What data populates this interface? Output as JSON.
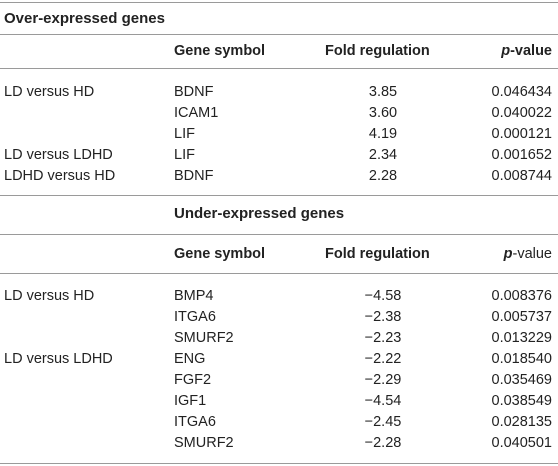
{
  "sections": [
    {
      "title": "Over-expressed genes",
      "headers": {
        "gene": "Gene symbol",
        "fold": "Fold regulation",
        "p_italic": "p",
        "p_rest": "-value"
      },
      "rows": [
        {
          "label": "LD versus HD",
          "gene": "BDNF",
          "fold": "3.85",
          "p": "0.046434"
        },
        {
          "label": "",
          "gene": "ICAM1",
          "fold": "3.60",
          "p": "0.040022"
        },
        {
          "label": "",
          "gene": "LIF",
          "fold": "4.19",
          "p": "0.000121"
        },
        {
          "label": "LD versus LDHD",
          "gene": "LIF",
          "fold": "2.34",
          "p": "0.001652"
        },
        {
          "label": "LDHD versus HD",
          "gene": "BDNF",
          "fold": "2.28",
          "p": "0.008744"
        }
      ]
    },
    {
      "title": "Under-expressed genes",
      "headers": {
        "gene": "Gene symbol",
        "fold": "Fold regulation",
        "p_italic": "p",
        "p_rest": "-value"
      },
      "rows": [
        {
          "label": "LD versus HD",
          "gene": "BMP4",
          "fold": "−4.58",
          "p": "0.008376"
        },
        {
          "label": "",
          "gene": "ITGA6",
          "fold": "−2.38",
          "p": "0.005737"
        },
        {
          "label": "",
          "gene": "SMURF2",
          "fold": "−2.23",
          "p": "0.013229"
        },
        {
          "label": "LD versus LDHD",
          "gene": "ENG",
          "fold": "−2.22",
          "p": "0.018540"
        },
        {
          "label": "",
          "gene": "FGF2",
          "fold": "−2.29",
          "p": "0.035469"
        },
        {
          "label": "",
          "gene": "IGF1",
          "fold": "−4.54",
          "p": "0.038549"
        },
        {
          "label": "",
          "gene": "ITGA6",
          "fold": "−2.45",
          "p": "0.028135"
        },
        {
          "label": "",
          "gene": "SMURF2",
          "fold": "−2.28",
          "p": "0.040501"
        }
      ]
    }
  ]
}
